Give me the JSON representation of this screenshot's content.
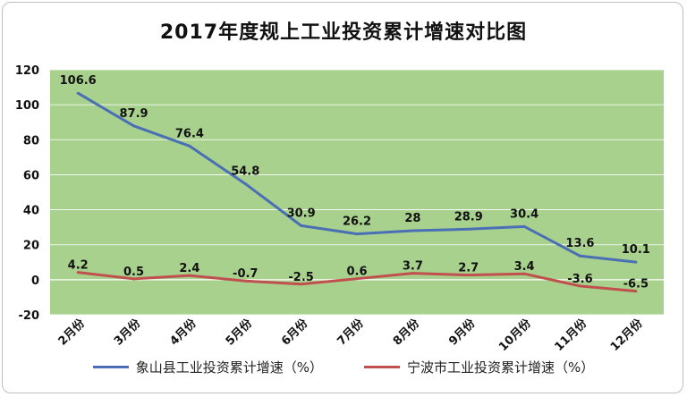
{
  "colors": {
    "plot_background": "#a9d18e",
    "series1": "#4a6fb5",
    "series2": "#c0504d",
    "grid": "#ffffff"
  },
  "chart_data": {
    "type": "line",
    "title": "2017年度规上工业投资累计增速对比图",
    "categories": [
      "2月份",
      "3月份",
      "4月份",
      "5月份",
      "6月份",
      "7月份",
      "8月份",
      "9月份",
      "10月份",
      "11月份",
      "12月份"
    ],
    "ylim": [
      -20,
      120
    ],
    "yticks": [
      -20,
      0,
      20,
      40,
      60,
      80,
      100,
      120
    ],
    "series": [
      {
        "name": "象山县工业投资累计增速（%）",
        "values": [
          106.6,
          87.9,
          76.4,
          54.8,
          30.9,
          26.2,
          28,
          28.9,
          30.4,
          13.6,
          10.1
        ],
        "labels": [
          "106.6",
          "87.9",
          "76.4",
          "54.8",
          "30.9",
          "26.2",
          "28",
          "28.9",
          "30.4",
          "13.6",
          "10.1"
        ]
      },
      {
        "name": "宁波市工业投资累计增速（%）",
        "values": [
          4.2,
          0.5,
          2.4,
          -0.7,
          -2.5,
          0.6,
          3.7,
          2.7,
          3.4,
          -3.6,
          -6.5
        ],
        "labels": [
          "4.2",
          "0.5",
          "2.4",
          "-0.7",
          "-2.5",
          "0.6",
          "3.7",
          "2.7",
          "3.4",
          "-3.6",
          "-6.5"
        ]
      }
    ],
    "grid": true,
    "legend": "bottom"
  }
}
